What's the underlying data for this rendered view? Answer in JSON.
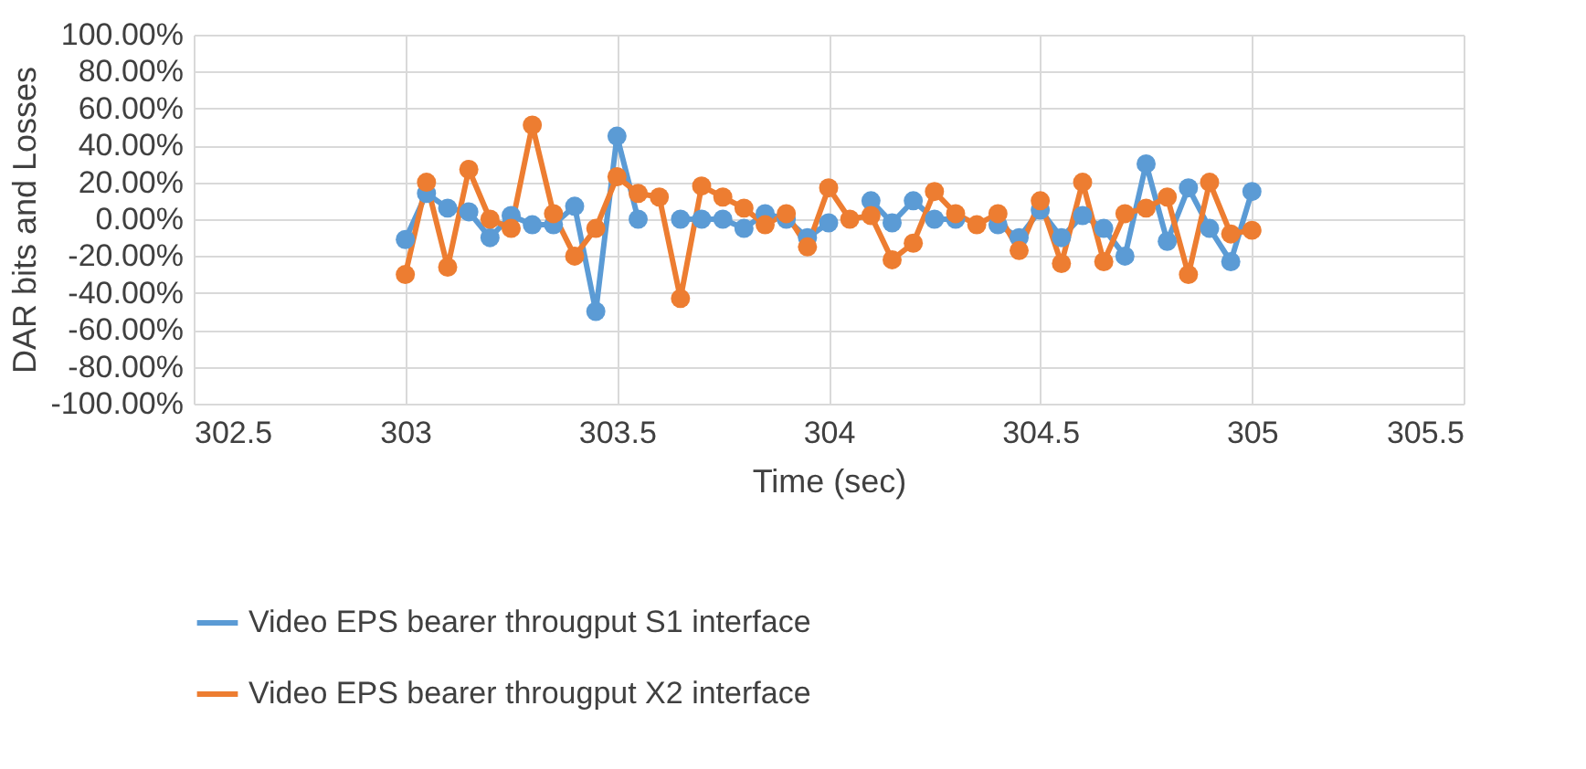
{
  "chart_data": {
    "type": "line",
    "xlabel": "Time (sec)",
    "ylabel": "DAR bits and Losses",
    "x": [
      303,
      303.05,
      303.1,
      303.15,
      303.2,
      303.25,
      303.3,
      303.35,
      303.4,
      303.45,
      303.5,
      303.55,
      303.6,
      303.65,
      303.7,
      303.75,
      303.8,
      303.85,
      303.9,
      303.95,
      304,
      304.05,
      304.1,
      304.15,
      304.2,
      304.25,
      304.3,
      304.35,
      304.4,
      304.45,
      304.5,
      304.55,
      304.6,
      304.65,
      304.7,
      304.75,
      304.8,
      304.85,
      304.9,
      304.95,
      305
    ],
    "series": [
      {
        "name": "Video EPS bearer througput S1 interface",
        "color": "#5b9bd5",
        "values": [
          -11,
          14,
          6,
          4,
          -10,
          2,
          -3,
          -3,
          7,
          -50,
          45,
          0,
          null,
          0,
          0,
          0,
          -5,
          3,
          0,
          -10,
          -2,
          null,
          10,
          -2,
          10,
          0,
          0,
          null,
          -3,
          -10,
          5,
          -10,
          2,
          -5,
          -20,
          30,
          -12,
          17,
          -5,
          -23,
          15
        ]
      },
      {
        "name": "Video EPS bearer througput X2 interface",
        "color": "#ed7d31",
        "values": [
          -30,
          20,
          -26,
          27,
          0,
          -5,
          51,
          3,
          -20,
          -5,
          23,
          14,
          12,
          -43,
          18,
          12,
          6,
          -3,
          3,
          -15,
          17,
          0,
          2,
          -22,
          -13,
          15,
          3,
          -3,
          3,
          -17,
          10,
          -24,
          20,
          -23,
          3,
          6,
          12,
          -30,
          20,
          -8,
          -6
        ]
      }
    ],
    "xlim": [
      302.5,
      305.5
    ],
    "xticks": [
      302.5,
      303,
      303.5,
      304,
      304.5,
      305,
      305.5
    ],
    "ylim": [
      -100,
      100
    ],
    "yticks": [
      {
        "value": -100,
        "label": "-100.00%"
      },
      {
        "value": -80,
        "label": "-80.00%"
      },
      {
        "value": -60,
        "label": "-60.00%"
      },
      {
        "value": -40,
        "label": "-40.00%"
      },
      {
        "value": -20,
        "label": "-20.00%"
      },
      {
        "value": 0,
        "label": "0.00%"
      },
      {
        "value": 20,
        "label": "20.00%"
      },
      {
        "value": 40,
        "label": "40.00%"
      },
      {
        "value": 60,
        "label": "60.00%"
      },
      {
        "value": 80,
        "label": "80.00%"
      },
      {
        "value": 100,
        "label": "100.00%"
      }
    ],
    "grid": true,
    "legend": "bottom",
    "marker": "circle",
    "line_style": "solid"
  }
}
